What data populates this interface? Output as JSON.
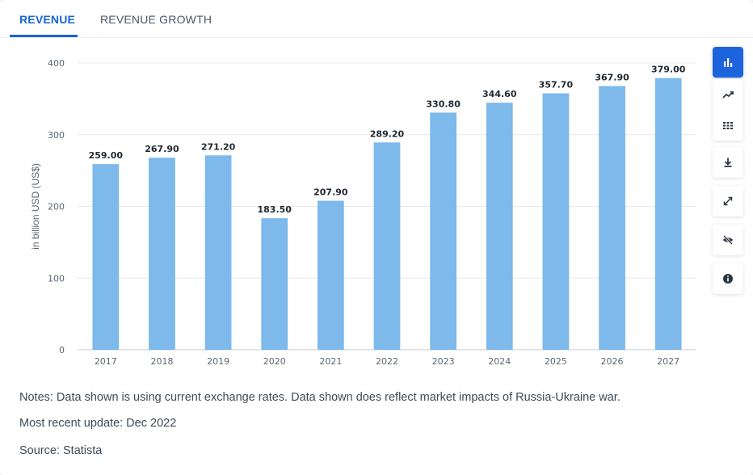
{
  "tabs": [
    {
      "label": "REVENUE",
      "active": true
    },
    {
      "label": "REVENUE GROWTH",
      "active": false
    }
  ],
  "toolbar": {
    "items": [
      "bar-chart-icon",
      "trend-line-icon",
      "table-grid-icon",
      "download-icon",
      "expand-icon",
      "hide-icon",
      "info-icon"
    ],
    "active_item": "bar-chart-icon",
    "accent_color": "#1d64dc"
  },
  "chart_data": {
    "type": "bar",
    "categories": [
      "2017",
      "2018",
      "2019",
      "2020",
      "2021",
      "2022",
      "2023",
      "2024",
      "2025",
      "2026",
      "2027"
    ],
    "values": [
      259.0,
      267.9,
      271.2,
      183.5,
      207.9,
      289.2,
      330.8,
      344.6,
      357.7,
      367.9,
      379.0
    ],
    "value_labels": [
      "259.00",
      "267.90",
      "271.20",
      "183.50",
      "207.90",
      "289.20",
      "330.80",
      "344.60",
      "357.70",
      "367.90",
      "379.00"
    ],
    "ylabel": "in billion USD (US$)",
    "ylim": [
      0,
      400
    ],
    "yticks": [
      0,
      100,
      200,
      300,
      400
    ],
    "grid": true,
    "bar_color": "#7db9ea"
  },
  "notes": {
    "note": "Notes: Data shown is using current exchange rates. Data shown does reflect market impacts of Russia-Ukraine war.",
    "update": "Most recent update: Dec 2022",
    "source": "Source: Statista"
  }
}
